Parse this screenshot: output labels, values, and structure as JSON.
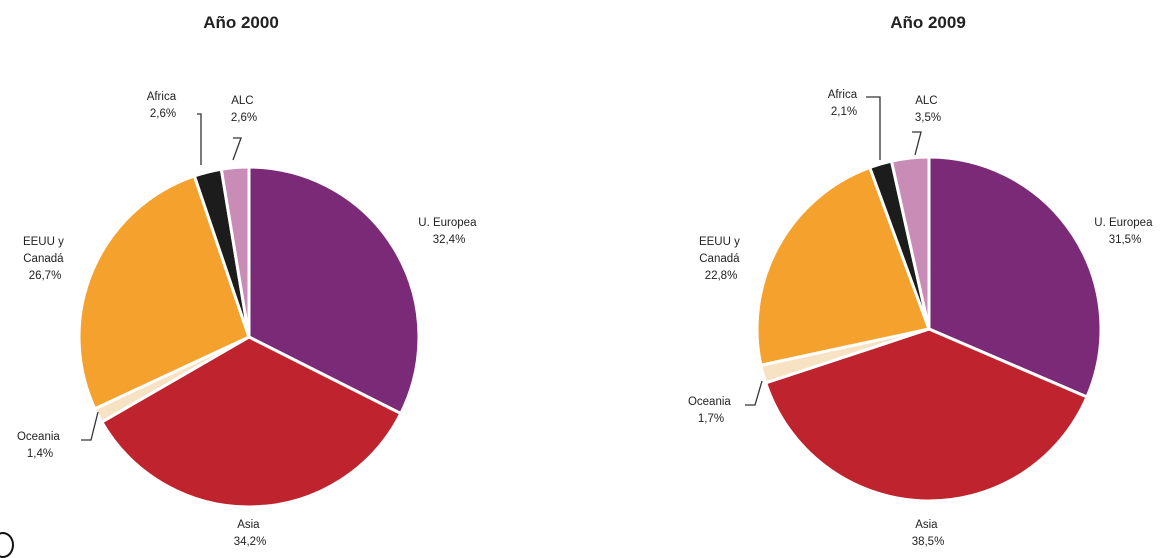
{
  "chart_data": [
    {
      "type": "pie",
      "title": "Año 2000",
      "slices": [
        {
          "name": "U. Europea",
          "value": 32.4,
          "value_label": "32,4%",
          "color": "#7b2a78"
        },
        {
          "name": "Asia",
          "value": 34.2,
          "value_label": "34,2%",
          "color": "#bf232d"
        },
        {
          "name": "Oceania",
          "value": 1.4,
          "value_label": "1,4%",
          "color": "#f7e2c3"
        },
        {
          "name": "EEUU y Canadá",
          "value": 26.7,
          "value_label": "26,7%",
          "color": "#f4a22d"
        },
        {
          "name": "Africa",
          "value": 2.6,
          "value_label": "2,6%",
          "color": "#1c1c1c"
        },
        {
          "name": "ALC",
          "value": 2.6,
          "value_label": "2,6%",
          "color": "#c98cb6"
        }
      ]
    },
    {
      "type": "pie",
      "title": "Año 2009",
      "slices": [
        {
          "name": "U. Europea",
          "value": 31.5,
          "value_label": "31,5%",
          "color": "#7b2a78"
        },
        {
          "name": "Asia",
          "value": 38.5,
          "value_label": "38,5%",
          "color": "#bf232d"
        },
        {
          "name": "Oceania",
          "value": 1.7,
          "value_label": "1,7%",
          "color": "#f7e2c3"
        },
        {
          "name": "EEUU y Canadá",
          "value": 22.8,
          "value_label": "22,8%",
          "color": "#f4a22d"
        },
        {
          "name": "Africa",
          "value": 2.1,
          "value_label": "2,1%",
          "color": "#1c1c1c"
        },
        {
          "name": "ALC",
          "value": 3.5,
          "value_label": "3,5%",
          "color": "#c98cb6"
        }
      ]
    }
  ]
}
